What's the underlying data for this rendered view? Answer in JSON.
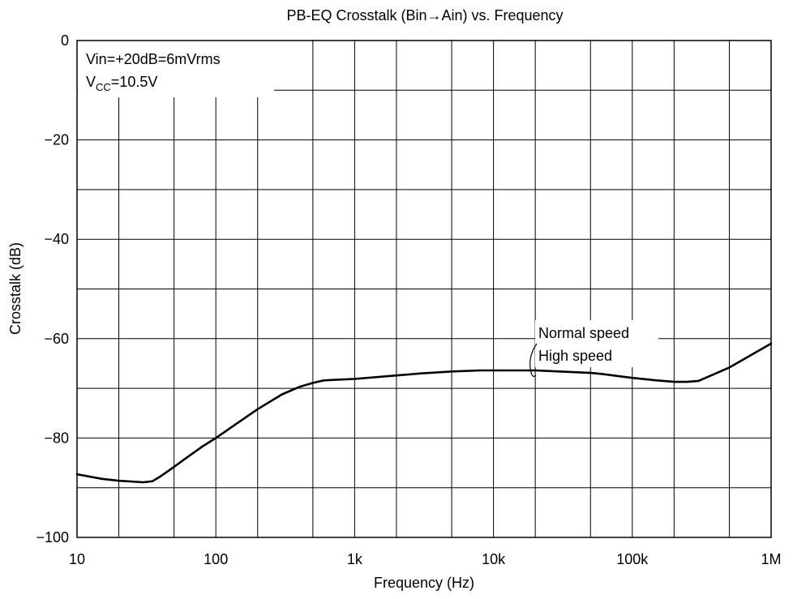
{
  "chart_data": {
    "type": "line",
    "title": "PB-EQ Crosstalk (Bin→Ain) vs. Frequency",
    "xlabel": "Frequency  (Hz)",
    "ylabel": "Crosstalk  (dB)",
    "xscale": "log",
    "xlim": [
      10,
      1000000
    ],
    "ylim": [
      -100,
      0
    ],
    "grid": true,
    "x_ticks": [
      {
        "value": 10,
        "label": "10"
      },
      {
        "value": 100,
        "label": "100"
      },
      {
        "value": 1000,
        "label": "1k"
      },
      {
        "value": 10000,
        "label": "10k"
      },
      {
        "value": 100000,
        "label": "100k"
      },
      {
        "value": 1000000,
        "label": "1M"
      }
    ],
    "y_ticks": [
      {
        "value": 0,
        "label": "0"
      },
      {
        "value": -20,
        "label": "−20"
      },
      {
        "value": -40,
        "label": "−40"
      },
      {
        "value": -60,
        "label": "−60"
      },
      {
        "value": -80,
        "label": "−80"
      },
      {
        "value": -100,
        "label": "−100"
      }
    ],
    "conditions": {
      "line1": "Vin=+20dB=6mVrms",
      "line2_main": "V",
      "line2_sub": "CC",
      "line2_rest": "=10.5V"
    },
    "series_labels": [
      "Normal speed",
      "High speed"
    ],
    "series": [
      {
        "x": [
          10,
          15,
          20,
          30,
          35,
          40,
          50,
          60,
          80,
          100,
          150,
          200,
          300,
          400,
          500,
          600,
          700,
          1000,
          2000,
          3000,
          5000,
          8000,
          10000,
          20000,
          30000,
          50000,
          60000,
          100000,
          150000,
          200000,
          250000,
          300000,
          500000,
          1000000
        ],
        "y": [
          -87.3,
          -88.2,
          -88.6,
          -88.9,
          -88.7,
          -87.7,
          -85.8,
          -84.2,
          -81.7,
          -80.0,
          -76.6,
          -74.2,
          -71.2,
          -69.7,
          -68.9,
          -68.4,
          -68.3,
          -68.1,
          -67.4,
          -67.0,
          -66.6,
          -66.4,
          -66.4,
          -66.4,
          -66.6,
          -66.9,
          -67.1,
          -67.9,
          -68.4,
          -68.7,
          -68.7,
          -68.5,
          -65.8,
          -61.0
        ]
      }
    ]
  }
}
